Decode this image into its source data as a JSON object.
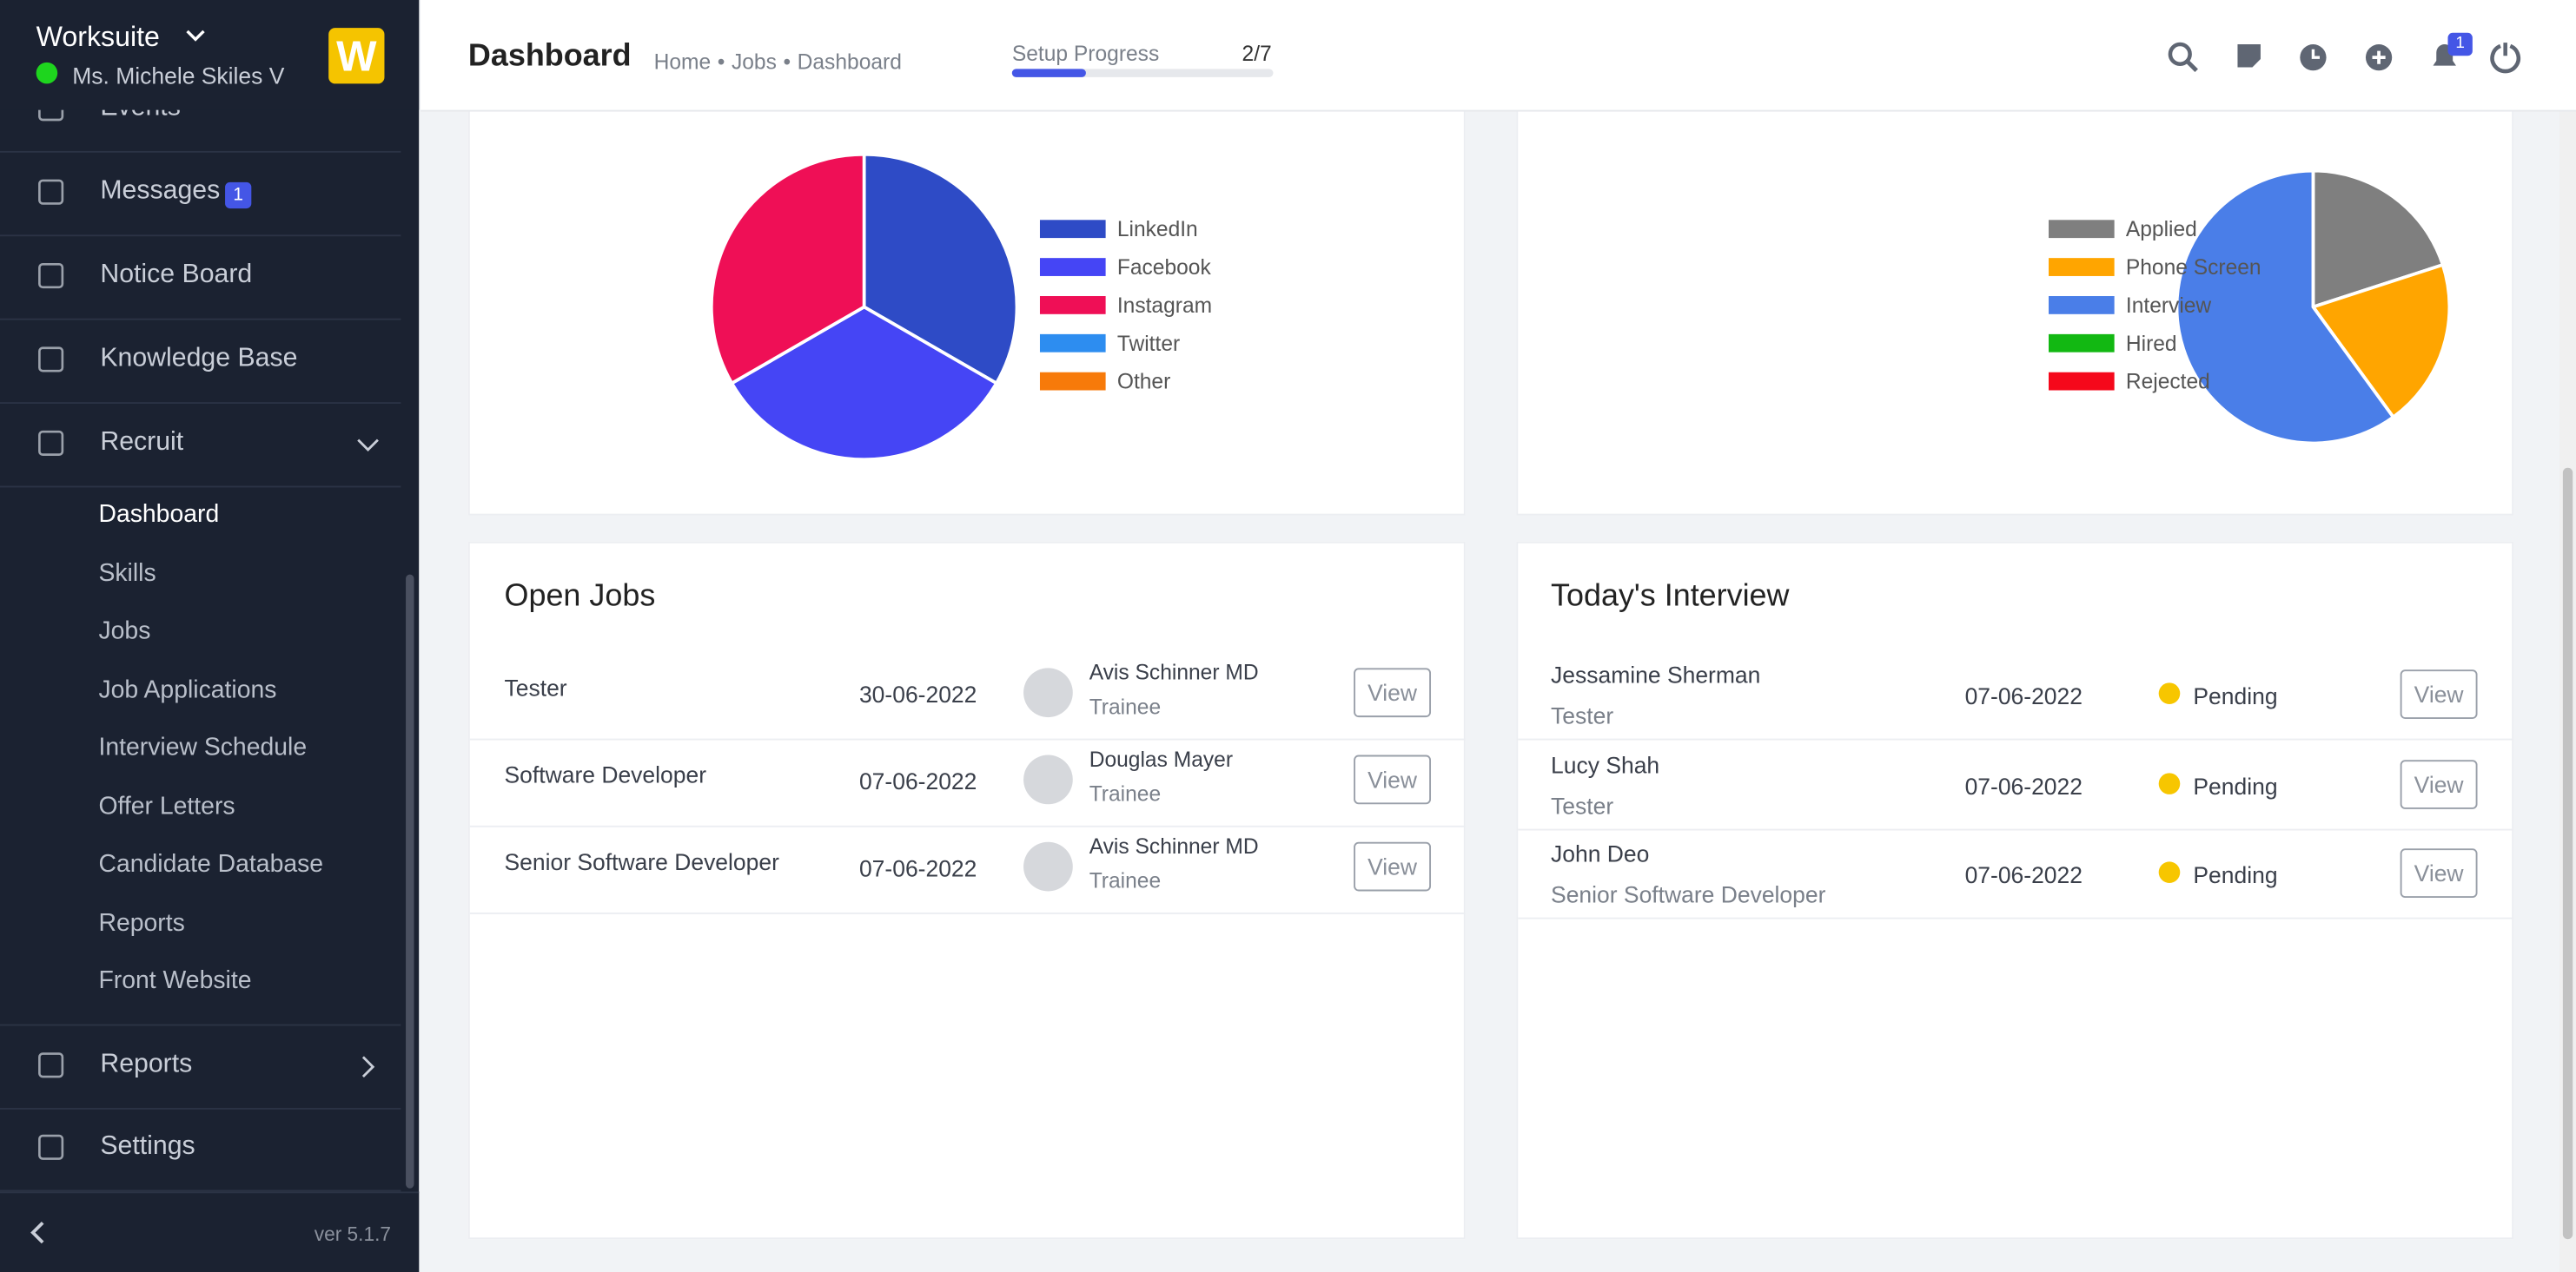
{
  "sidebar": {
    "brand": "Worksuite",
    "user": "Ms. Michele Skiles V",
    "menu": [
      "Events",
      "Messages",
      "Notice Board",
      "Knowledge Base",
      "Recruit"
    ],
    "messages_badge": "1",
    "submenu": [
      "Dashboard",
      "Skills",
      "Jobs",
      "Job Applications",
      "Interview Schedule",
      "Offer Letters",
      "Candidate Database",
      "Reports",
      "Front Website"
    ],
    "menu_bottom": [
      "Reports",
      "Settings"
    ],
    "version": "ver 5.1.7"
  },
  "header": {
    "title": "Dashboard",
    "breadcrumb": [
      "Home",
      "Jobs",
      "Dashboard"
    ],
    "setup_label": "Setup Progress",
    "setup_progress": "2/7",
    "notification_badge": "1"
  },
  "chart_data": [
    {
      "type": "pie",
      "categories": [
        "LinkedIn",
        "Facebook",
        "Instagram",
        "Twitter",
        "Other"
      ],
      "values": [
        1,
        1,
        1,
        0,
        0
      ],
      "colors": [
        "#2e4bc6",
        "#4545f5",
        "#ef0f56",
        "#2d8df0",
        "#f77a0a"
      ]
    },
    {
      "type": "pie",
      "categories": [
        "Applied",
        "Phone Screen",
        "Interview",
        "Hired",
        "Rejected"
      ],
      "values": [
        2,
        2,
        6,
        0,
        0
      ],
      "colors": [
        "#7f7f7f",
        "#ffa500",
        "#4a7ee8",
        "#12b812",
        "#f5081b"
      ]
    }
  ],
  "open_jobs": {
    "title": "Open Jobs",
    "rows": [
      [
        "Tester",
        "30-06-2022",
        "Avis Schinner MD",
        "Trainee",
        "View"
      ],
      [
        "Software Developer",
        "07-06-2022",
        "Douglas Mayer",
        "Trainee",
        "View"
      ],
      [
        "Senior Software Developer",
        "07-06-2022",
        "Avis Schinner MD",
        "Trainee",
        "View"
      ]
    ]
  },
  "interviews": {
    "title": "Today's Interview",
    "rows": [
      [
        "Jessamine Sherman",
        "Tester",
        "07-06-2022",
        "Pending",
        "View"
      ],
      [
        "Lucy Shah",
        "Tester",
        "07-06-2022",
        "Pending",
        "View"
      ],
      [
        "John Deo",
        "Senior Software Developer",
        "07-06-2022",
        "Pending",
        "View"
      ]
    ]
  }
}
